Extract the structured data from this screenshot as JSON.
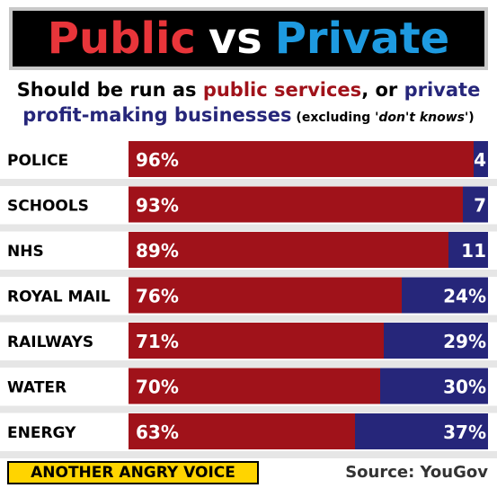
{
  "header": {
    "title_public": "Public",
    "title_vs": "vs",
    "title_private": "Private"
  },
  "subtitle": {
    "line1_a": "Should be run as ",
    "line1_public": "public services",
    "line1_b": ", or ",
    "line1_private": "private",
    "line2_private": "profit-making businesses",
    "line2_note_a": " (excluding '",
    "line2_note_b": "don't knows",
    "line2_note_c": "')"
  },
  "colors": {
    "public": "#a0121a",
    "private": "#26267a",
    "divider": "#e6e6e6"
  },
  "chart_data": {
    "type": "bar",
    "orientation": "horizontal",
    "stacked": true,
    "categories": [
      "POLICE",
      "SCHOOLS",
      "NHS",
      "ROYAL MAIL",
      "RAILWAYS",
      "WATER",
      "ENERGY"
    ],
    "series": [
      {
        "values": [
          96,
          93,
          89,
          76,
          71,
          70,
          63
        ],
        "labels": [
          "96%",
          "93%",
          "89%",
          "76%",
          "71%",
          "70%",
          "63%"
        ]
      },
      {
        "values": [
          4,
          7,
          11,
          24,
          29,
          30,
          37
        ],
        "labels": [
          "4",
          "7",
          "11",
          "24%",
          "29%",
          "30%",
          "37%"
        ]
      }
    ],
    "xlim": [
      0,
      100
    ]
  },
  "footer": {
    "brand": "ANOTHER ANGRY VOICE",
    "source": "Source: YouGov"
  }
}
